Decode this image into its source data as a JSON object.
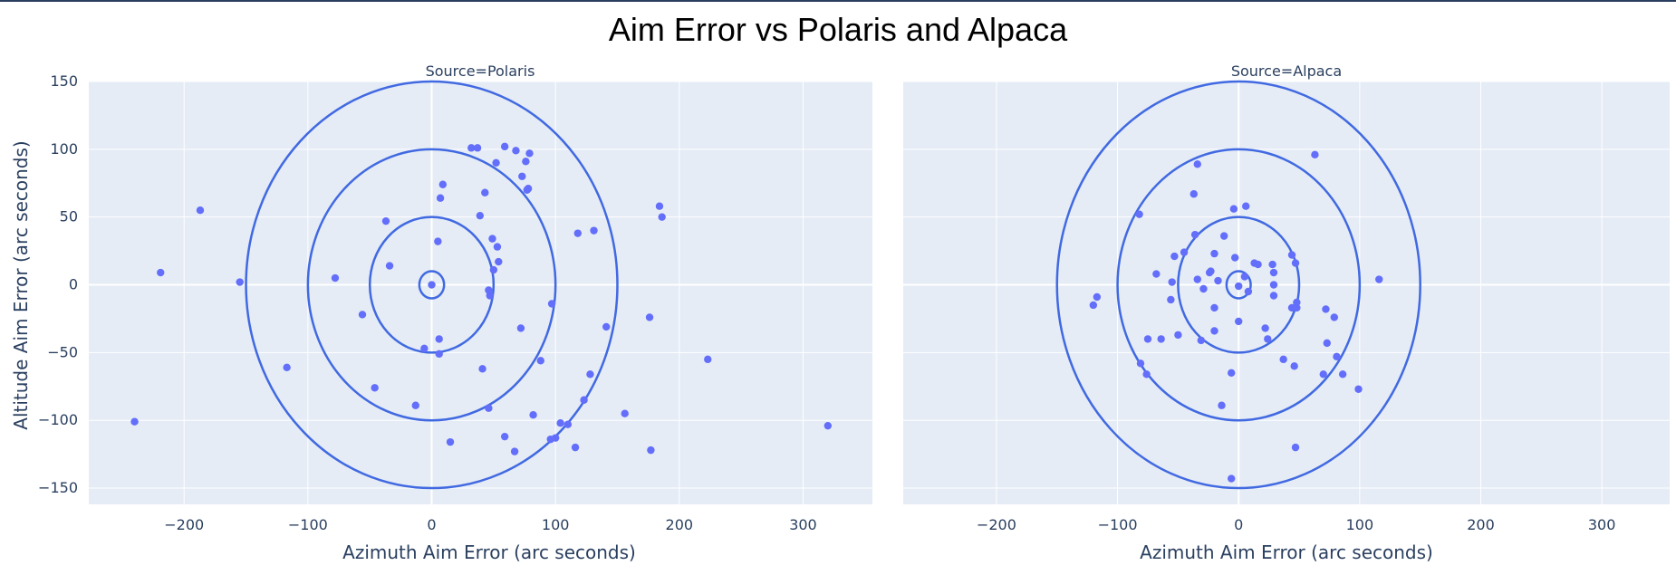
{
  "chart_data": {
    "type": "scatter",
    "title": "Aim Error vs Polaris and Alpaca",
    "xlabel": "Azimuth Aim Error (arc seconds)",
    "ylabel": "Altitude Aim Error (arc seconds)",
    "xlim": [
      -277,
      356
    ],
    "ylim": [
      -162,
      150
    ],
    "x_ticks": [
      -200,
      -100,
      0,
      100,
      200,
      300
    ],
    "x_tick_labels": [
      "−200",
      "−100",
      "0",
      "100",
      "200",
      "300"
    ],
    "y_ticks": [
      -150,
      -100,
      -50,
      0,
      50,
      100,
      150
    ],
    "y_tick_labels": [
      "−150",
      "−100",
      "−50",
      "0",
      "50",
      "100",
      "150"
    ],
    "grid": true,
    "ring_radii": [
      10,
      50,
      100,
      150
    ],
    "colors": {
      "marker": "#636efa",
      "ring": "#4169e1",
      "plot_bg": "#e5ecf6",
      "grid": "#ffffff",
      "text": "#2a3f5f"
    },
    "panels": [
      {
        "subtitle": "Source=Polaris",
        "points": [
          [
            -240,
            -101
          ],
          [
            -219,
            9
          ],
          [
            -187,
            55
          ],
          [
            -155,
            2
          ],
          [
            -117,
            -61
          ],
          [
            -78,
            5
          ],
          [
            -56,
            -22
          ],
          [
            -46,
            -76
          ],
          [
            -37,
            47
          ],
          [
            -34,
            14
          ],
          [
            -13,
            -89
          ],
          [
            -6,
            -47
          ],
          [
            0,
            0
          ],
          [
            5,
            32
          ],
          [
            6,
            -51
          ],
          [
            6,
            -40
          ],
          [
            7,
            64
          ],
          [
            9,
            74
          ],
          [
            15,
            -116
          ],
          [
            32,
            101
          ],
          [
            37,
            101
          ],
          [
            39,
            51
          ],
          [
            41,
            -62
          ],
          [
            43,
            68
          ],
          [
            46,
            -91
          ],
          [
            46,
            -4
          ],
          [
            47,
            -8
          ],
          [
            49,
            34
          ],
          [
            50,
            11
          ],
          [
            52,
            90
          ],
          [
            53,
            28
          ],
          [
            54,
            17
          ],
          [
            59,
            -112
          ],
          [
            59,
            102
          ],
          [
            67,
            -123
          ],
          [
            68,
            99
          ],
          [
            72,
            -32
          ],
          [
            73,
            80
          ],
          [
            76,
            91
          ],
          [
            77,
            70
          ],
          [
            78,
            71
          ],
          [
            79,
            97
          ],
          [
            82,
            -96
          ],
          [
            88,
            -56
          ],
          [
            96,
            -114
          ],
          [
            97,
            -14
          ],
          [
            100,
            -113
          ],
          [
            104,
            -102
          ],
          [
            110,
            -103
          ],
          [
            116,
            -120
          ],
          [
            118,
            38
          ],
          [
            123,
            -85
          ],
          [
            128,
            -66
          ],
          [
            131,
            40
          ],
          [
            156,
            -95
          ],
          [
            141,
            -31
          ],
          [
            176,
            -24
          ],
          [
            177,
            -122
          ],
          [
            184,
            58
          ],
          [
            186,
            50
          ],
          [
            223,
            -55
          ],
          [
            320,
            -104
          ]
        ]
      },
      {
        "subtitle": "Source=Alpaca",
        "points": [
          [
            -120,
            -15
          ],
          [
            -117,
            -9
          ],
          [
            -82,
            52
          ],
          [
            -81,
            -58
          ],
          [
            -76,
            -66
          ],
          [
            -75,
            -40
          ],
          [
            -68,
            8
          ],
          [
            -64,
            -40
          ],
          [
            -56,
            -11
          ],
          [
            -55,
            2
          ],
          [
            -53,
            21
          ],
          [
            -50,
            -37
          ],
          [
            -45,
            24
          ],
          [
            -37,
            67
          ],
          [
            -36,
            37
          ],
          [
            -34,
            89
          ],
          [
            -34,
            4
          ],
          [
            -31,
            -41
          ],
          [
            -29,
            -3
          ],
          [
            -24,
            9
          ],
          [
            -23,
            10
          ],
          [
            -20,
            -17
          ],
          [
            -20,
            -34
          ],
          [
            -20,
            23
          ],
          [
            -17,
            3
          ],
          [
            -14,
            -89
          ],
          [
            -12,
            36
          ],
          [
            -6,
            -65
          ],
          [
            -6,
            -143
          ],
          [
            -4,
            56
          ],
          [
            -3,
            20
          ],
          [
            0,
            -1
          ],
          [
            0,
            -27
          ],
          [
            5,
            6
          ],
          [
            6,
            58
          ],
          [
            8,
            -5
          ],
          [
            13,
            16
          ],
          [
            16,
            15
          ],
          [
            22,
            -32
          ],
          [
            24,
            -40
          ],
          [
            28,
            15
          ],
          [
            29,
            0
          ],
          [
            29,
            9
          ],
          [
            29,
            -8
          ],
          [
            37,
            -55
          ],
          [
            44,
            -17
          ],
          [
            44,
            22
          ],
          [
            46,
            -60
          ],
          [
            47,
            16
          ],
          [
            48,
            -13
          ],
          [
            48,
            -17
          ],
          [
            47,
            -120
          ],
          [
            63,
            96
          ],
          [
            70,
            -66
          ],
          [
            72,
            -18
          ],
          [
            73,
            -43
          ],
          [
            79,
            -24
          ],
          [
            81,
            -53
          ],
          [
            86,
            -66
          ],
          [
            99,
            -77
          ],
          [
            116,
            4
          ]
        ]
      }
    ]
  }
}
